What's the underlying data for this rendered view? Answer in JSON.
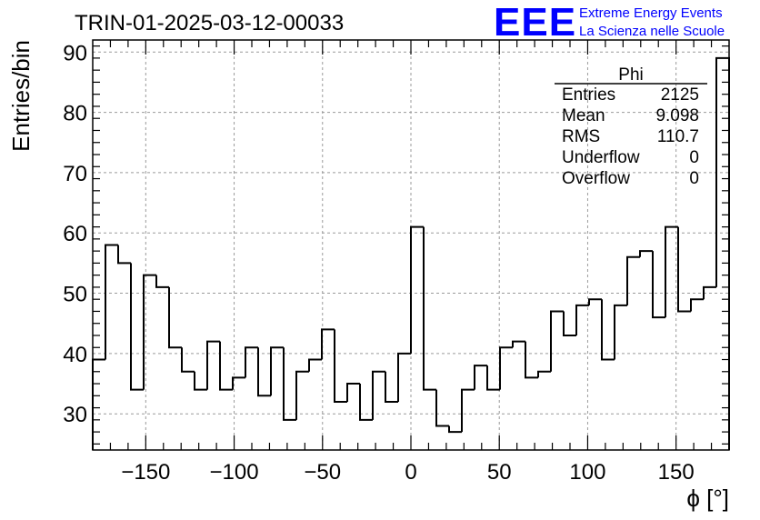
{
  "chart_data": {
    "type": "bar",
    "title": "TRIN-01-2025-03-12-00033",
    "xlabel": "ϕ [°]",
    "ylabel": "Entries/bin",
    "xlim": [
      -180,
      180
    ],
    "ylim": [
      24,
      92
    ],
    "bin_width": 7.2,
    "x_ticks": [
      -150,
      -100,
      -50,
      0,
      50,
      100,
      150
    ],
    "x_tick_labels": [
      "−150",
      "−100",
      "−50",
      "0",
      "50",
      "100",
      "150"
    ],
    "y_ticks": [
      30,
      40,
      50,
      60,
      70,
      80,
      90
    ],
    "y_tick_labels": [
      "30",
      "40",
      "50",
      "60",
      "70",
      "80",
      "90"
    ],
    "grid": true,
    "series": [
      {
        "name": "Phi",
        "values": [
          39,
          58,
          55,
          34,
          53,
          51,
          41,
          37,
          34,
          42,
          34,
          36,
          41,
          33,
          41,
          29,
          37,
          39,
          44,
          32,
          35,
          29,
          37,
          32,
          40,
          61,
          34,
          28,
          27,
          34,
          38,
          34,
          41,
          42,
          36,
          37,
          47,
          43,
          48,
          49,
          39,
          48,
          56,
          57,
          46,
          61,
          47,
          49,
          51,
          89
        ]
      }
    ],
    "color": "#000000"
  },
  "stats_box": {
    "title": "Phi",
    "rows": [
      {
        "label": "Entries",
        "value": "2125"
      },
      {
        "label": "Mean",
        "value": "9.098"
      },
      {
        "label": "RMS",
        "value": "110.7"
      },
      {
        "label": "Underflow",
        "value": "0"
      },
      {
        "label": "Overflow",
        "value": "0"
      }
    ]
  },
  "logo": {
    "text": "EEE",
    "line1": "Extreme Energy Events",
    "line2": "La Scienza nelle Scuole",
    "color": "#0000ff"
  }
}
